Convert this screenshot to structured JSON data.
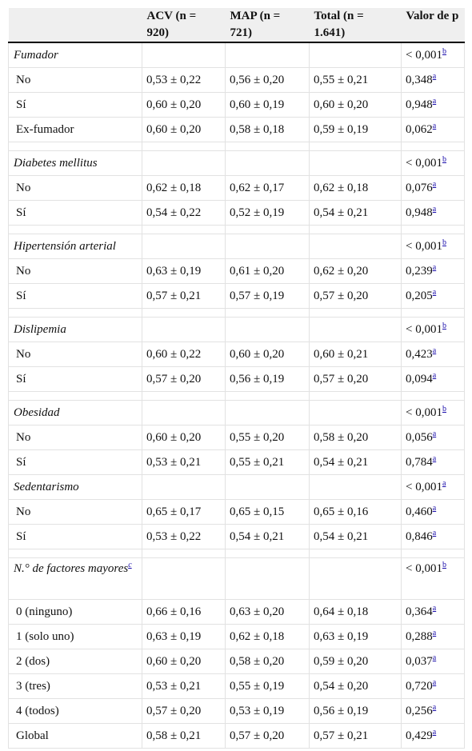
{
  "table": {
    "header": [
      "ACV (n = 920)",
      "MAP (n = 721)",
      "Total (n = 1.641)",
      "Valor de p"
    ],
    "groups": [
      {
        "label": "Fumador",
        "p": "< 0,001",
        "p_note": "b",
        "rows": [
          {
            "label": "No",
            "cells": [
              "0,53 ± 0,22",
              "0,56 ± 0,20",
              "0,55 ± 0,21"
            ],
            "p": "0,348",
            "p_note": "a"
          },
          {
            "label": "Sí",
            "cells": [
              "0,60 ± 0,20",
              "0,60 ± 0,19",
              "0,60 ± 0,20"
            ],
            "p": "0,948",
            "p_note": "a"
          },
          {
            "label": "Ex-fumador",
            "cells": [
              "0,60 ± 0,20",
              "0,58 ± 0,18",
              "0,59 ± 0,19"
            ],
            "p": "0,062",
            "p_note": "a"
          }
        ]
      },
      {
        "label": "Diabetes mellitus",
        "p": "< 0,001",
        "p_note": "b",
        "rows": [
          {
            "label": "No",
            "cells": [
              "0,62 ± 0,18",
              "0,62 ± 0,17",
              "0,62 ± 0,18"
            ],
            "p": "0,076",
            "p_note": "a"
          },
          {
            "label": "Sí",
            "cells": [
              "0,54 ± 0,22",
              "0,52 ± 0,19",
              "0,54 ± 0,21"
            ],
            "p": "0,948",
            "p_note": "a"
          }
        ]
      },
      {
        "label": "Hipertensión arterial",
        "p": "< 0,001",
        "p_note": "b",
        "rows": [
          {
            "label": "No",
            "cells": [
              "0,63 ± 0,19",
              "0,61 ± 0,20",
              "0,62 ± 0,20"
            ],
            "p": "0,239",
            "p_note": "a"
          },
          {
            "label": "Sí",
            "cells": [
              "0,57 ± 0,21",
              "0,57 ± 0,19",
              "0,57 ± 0,20"
            ],
            "p": "0,205",
            "p_note": "a"
          }
        ]
      },
      {
        "label": "Dislipemia",
        "p": "< 0,001",
        "p_note": "b",
        "rows": [
          {
            "label": "No",
            "cells": [
              "0,60 ± 0,22",
              "0,60 ± 0,20",
              "0,60 ± 0,21"
            ],
            "p": "0,423",
            "p_note": "a"
          },
          {
            "label": "Sí",
            "cells": [
              "0,57 ± 0,20",
              "0,56 ± 0,19",
              "0,57 ± 0,20"
            ],
            "p": "0,094",
            "p_note": "a"
          }
        ]
      },
      {
        "label": "Obesidad",
        "p": "< 0,001",
        "p_note": "b",
        "rows": [
          {
            "label": "No",
            "cells": [
              "0,60 ± 0,20",
              "0,55 ± 0,20",
              "0,58 ± 0,20"
            ],
            "p": "0,056",
            "p_note": "a"
          },
          {
            "label": "Sí",
            "cells": [
              "0,53 ± 0,21",
              "0,55 ± 0,21",
              "0,54 ± 0,21"
            ],
            "p": "0,784",
            "p_note": "a"
          }
        ]
      },
      {
        "label": "Sedentarismo",
        "p": "< 0,001",
        "p_note": "a",
        "rows": [
          {
            "label": "No",
            "cells": [
              "0,65 ± 0,17",
              "0,65 ± 0,15",
              "0,65 ± 0,16"
            ],
            "p": "0,460",
            "p_note": "a"
          },
          {
            "label": "Sí",
            "cells": [
              "0,53 ± 0,22",
              "0,54 ± 0,21",
              "0,54 ± 0,21"
            ],
            "p": "0,846",
            "p_note": "a"
          }
        ]
      },
      {
        "label": "N.° de factores mayores",
        "label_note": "c",
        "p": "< 0,001",
        "p_note": "b",
        "rows": [
          {
            "label": "0 (ninguno)",
            "cells": [
              "0,66 ± 0,16",
              "0,63 ± 0,20",
              "0,64 ± 0,18"
            ],
            "p": "0,364",
            "p_note": "a"
          },
          {
            "label": "1 (solo uno)",
            "cells": [
              "0,63 ± 0,19",
              "0,62 ± 0,18",
              "0,63 ± 0,19"
            ],
            "p": "0,288",
            "p_note": "a"
          },
          {
            "label": "2 (dos)",
            "cells": [
              "0,60 ± 0,20",
              "0,58 ± 0,20",
              "0,59 ± 0,20"
            ],
            "p": "0,037",
            "p_note": "a"
          },
          {
            "label": "3 (tres)",
            "cells": [
              "0,53 ± 0,21",
              "0,55 ± 0,19",
              "0,54 ± 0,20"
            ],
            "p": "0,720",
            "p_note": "a"
          },
          {
            "label": "4 (todos)",
            "cells": [
              "0,57 ± 0,20",
              "0,53 ± 0,19",
              "0,56 ± 0,19"
            ],
            "p": "0,256",
            "p_note": "a"
          },
          {
            "label": "Global",
            "cells": [
              "0,58 ± 0,21",
              "0,57 ± 0,20",
              "0,57 ± 0,21"
            ],
            "p": "0,429",
            "p_note": "a"
          }
        ]
      }
    ]
  }
}
